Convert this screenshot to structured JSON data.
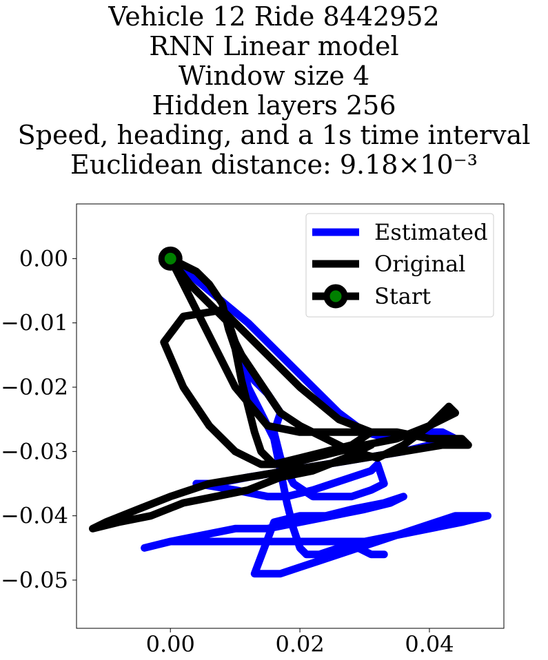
{
  "chart_data": {
    "type": "line",
    "title_lines": [
      "Vehicle 12 Ride 8442952",
      "RNN Linear model",
      "Window size 4",
      "Hidden layers 256",
      "Speed, heading, and a 1s time interval",
      "Euclidean distance: 9.18×10⁻³"
    ],
    "xlabel": "",
    "ylabel": "",
    "xlim": [
      -0.0145,
      0.0515
    ],
    "ylim": [
      -0.0575,
      0.0085
    ],
    "x_ticks": [
      0.0,
      0.02,
      0.04
    ],
    "x_tick_labels": [
      "0.00",
      "0.02",
      "0.04"
    ],
    "y_ticks": [
      0.0,
      -0.01,
      -0.02,
      -0.03,
      -0.04,
      -0.05
    ],
    "y_tick_labels": [
      "0.00",
      "−0.01",
      "−0.02",
      "−0.03",
      "−0.04",
      "−0.05"
    ],
    "legend_position": "top-right",
    "grid": false,
    "series": [
      {
        "name": "Estimated",
        "color": "#0000ff",
        "x": [
          0.0,
          0.006,
          0.012,
          0.018,
          0.022,
          0.026,
          0.03,
          0.034,
          0.038,
          0.042,
          0.044,
          0.036,
          0.03,
          0.024,
          0.018,
          0.012,
          0.007,
          0.004,
          0.01,
          0.015,
          0.018,
          0.022,
          0.025,
          0.028,
          0.031,
          0.032,
          0.033,
          0.031,
          0.028,
          0.025,
          0.022,
          0.019,
          0.017,
          0.016,
          0.017,
          0.015,
          0.013,
          0.011,
          0.01,
          0.011,
          0.012,
          0.014,
          0.016,
          0.017,
          0.018,
          0.019,
          0.02,
          0.021,
          0.023,
          0.026,
          0.029,
          0.032,
          0.035,
          0.038,
          0.041,
          0.044,
          0.047,
          0.049,
          0.045,
          0.04,
          0.035,
          0.03,
          0.025,
          0.02,
          0.015,
          0.01,
          0.005,
          0.0,
          -0.004,
          0.0,
          0.005,
          0.01,
          0.015,
          0.02,
          0.025,
          0.03,
          0.034,
          0.036,
          0.033,
          0.028,
          0.024,
          0.02,
          0.016,
          0.013,
          0.014,
          0.017,
          0.02,
          0.023,
          0.026,
          0.029,
          0.031,
          0.033
        ],
        "y": [
          0.0,
          -0.005,
          -0.01,
          -0.016,
          -0.02,
          -0.024,
          -0.027,
          -0.028,
          -0.027,
          -0.027,
          -0.028,
          -0.03,
          -0.031,
          -0.032,
          -0.033,
          -0.034,
          -0.035,
          -0.035,
          -0.036,
          -0.037,
          -0.037,
          -0.036,
          -0.035,
          -0.034,
          -0.033,
          -0.032,
          -0.035,
          -0.036,
          -0.037,
          -0.037,
          -0.037,
          -0.035,
          -0.031,
          -0.027,
          -0.024,
          -0.021,
          -0.019,
          -0.016,
          -0.013,
          -0.016,
          -0.02,
          -0.024,
          -0.028,
          -0.033,
          -0.038,
          -0.042,
          -0.045,
          -0.046,
          -0.046,
          -0.045,
          -0.045,
          -0.044,
          -0.043,
          -0.042,
          -0.041,
          -0.04,
          -0.04,
          -0.04,
          -0.041,
          -0.042,
          -0.043,
          -0.044,
          -0.044,
          -0.044,
          -0.044,
          -0.044,
          -0.044,
          -0.044,
          -0.045,
          -0.044,
          -0.043,
          -0.042,
          -0.042,
          -0.041,
          -0.04,
          -0.039,
          -0.038,
          -0.037,
          -0.038,
          -0.039,
          -0.04,
          -0.04,
          -0.041,
          -0.049,
          -0.049,
          -0.049,
          -0.048,
          -0.047,
          -0.046,
          -0.045,
          -0.046,
          -0.046
        ]
      },
      {
        "name": "Original",
        "color": "#000000",
        "x": [
          0.0,
          0.003,
          0.006,
          0.009,
          0.01,
          0.011,
          0.013,
          0.015,
          0.017,
          0.02,
          0.024,
          0.028,
          0.032,
          0.036,
          0.04,
          0.043,
          0.044,
          0.04,
          0.035,
          0.03,
          0.026,
          0.022,
          0.018,
          0.014,
          0.01,
          0.006,
          0.002,
          -0.001,
          0.002,
          0.008,
          0.014,
          0.02,
          0.026,
          0.031,
          0.028,
          0.024,
          0.02,
          0.016,
          0.014,
          0.013,
          0.012,
          0.011,
          0.01,
          0.009,
          0.008,
          0.006,
          0.004,
          0.002,
          0.0,
          0.005,
          0.01,
          0.015,
          0.02,
          0.025,
          0.03,
          0.035,
          0.04,
          0.045,
          0.046,
          0.042,
          0.036,
          0.03,
          0.024,
          0.018,
          0.012,
          0.006,
          0.0,
          -0.005,
          -0.01,
          -0.012,
          -0.008,
          -0.003,
          0.002,
          0.007,
          0.012,
          0.017,
          0.022,
          0.027,
          0.031
        ],
        "y": [
          0.0,
          -0.004,
          -0.007,
          -0.01,
          -0.013,
          -0.015,
          -0.018,
          -0.021,
          -0.024,
          -0.026,
          -0.028,
          -0.03,
          -0.031,
          -0.029,
          -0.026,
          -0.023,
          -0.024,
          -0.026,
          -0.028,
          -0.029,
          -0.03,
          -0.031,
          -0.032,
          -0.032,
          -0.03,
          -0.026,
          -0.02,
          -0.013,
          -0.009,
          -0.008,
          -0.014,
          -0.02,
          -0.025,
          -0.027,
          -0.029,
          -0.03,
          -0.031,
          -0.032,
          -0.03,
          -0.027,
          -0.023,
          -0.019,
          -0.014,
          -0.011,
          -0.007,
          -0.004,
          -0.002,
          -0.001,
          0.0,
          -0.01,
          -0.02,
          -0.026,
          -0.027,
          -0.027,
          -0.027,
          -0.027,
          -0.028,
          -0.028,
          -0.029,
          -0.029,
          -0.03,
          -0.031,
          -0.032,
          -0.033,
          -0.034,
          -0.035,
          -0.037,
          -0.039,
          -0.041,
          -0.042,
          -0.041,
          -0.04,
          -0.038,
          -0.037,
          -0.036,
          -0.034,
          -0.033,
          -0.031,
          -0.029
        ]
      }
    ],
    "start_marker": {
      "name": "Start",
      "x": 0.0,
      "y": 0.0,
      "edge_color": "#000000",
      "face_color": "#008000"
    }
  }
}
